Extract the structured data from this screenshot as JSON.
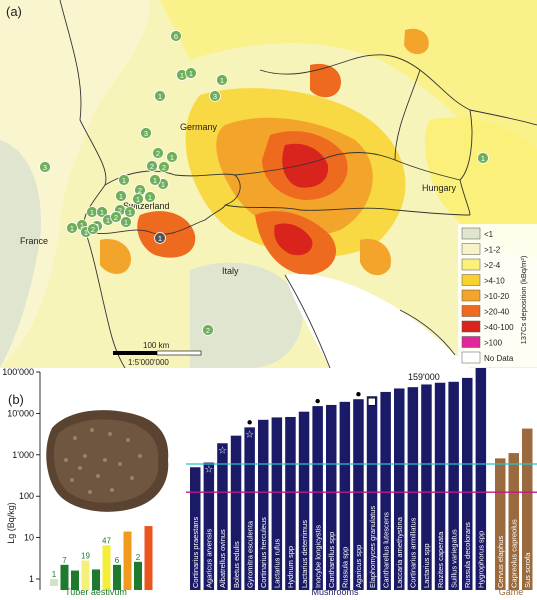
{
  "map": {
    "panel_label": "(a)",
    "places": [
      "Germany",
      "Switzerland",
      "France",
      "Italy",
      "Hungary"
    ],
    "scale_label": "100 km",
    "scale_ratio": "1:5'000'000",
    "legend": {
      "title": "137Cs deposition (kBq/m²)",
      "items": [
        {
          "label": "<1",
          "color": "#dfe5cf"
        },
        {
          "label": ">1-2",
          "color": "#f6f3c8"
        },
        {
          "label": ">2-4",
          "color": "#fbf07a"
        },
        {
          "label": ">4-10",
          "color": "#f8d22e"
        },
        {
          "label": ">10-20",
          "color": "#f2a52a"
        },
        {
          "label": ">20-40",
          "color": "#ee6a1f"
        },
        {
          "label": ">40-100",
          "color": "#d8241c"
        },
        {
          "label": ">100",
          "color": "#e0289a"
        },
        {
          "label": "No Data",
          "color": "#ffffff"
        }
      ]
    },
    "markers": [
      "6",
      "1",
      "1",
      "1",
      "3",
      "3",
      "1",
      "3",
      "2",
      "1",
      "2",
      "2",
      "1",
      "1",
      "2",
      "1",
      "1",
      "1",
      "1",
      "1",
      "2",
      "1",
      "1",
      "2",
      "1",
      "1",
      "2",
      "1",
      "2",
      "1",
      "1",
      "2",
      "1",
      "1"
    ]
  },
  "chart_data": {
    "type": "bar",
    "panel_label": "(b)",
    "ylabel": "Lg (Bq/kg)",
    "yscale": "log",
    "ylim": [
      1,
      100000
    ],
    "yticks": [
      "1",
      "10",
      "100",
      "1'000",
      "10'000",
      "100'000"
    ],
    "reference_lines": [
      {
        "value": 600,
        "color": "#27c2d2"
      },
      {
        "value": 125,
        "color": "#c0188a"
      }
    ],
    "groups": [
      {
        "name": "Tuber aestivum",
        "color": "#1e7a2c"
      },
      {
        "name": "Mushrooms",
        "color": "#1a1a66"
      },
      {
        "name": "Game",
        "color": "#9a6a3e"
      }
    ],
    "tuber_bars": [
      {
        "value": 0.8,
        "color": "#cfe3c7",
        "label": "1"
      },
      {
        "value": 2.2,
        "color": "#1e7a2c",
        "label": "7"
      },
      {
        "value": 1.6,
        "color": "#1e7a2c",
        "label": ""
      },
      {
        "value": 2.8,
        "color": "#f4f07a",
        "label": "19"
      },
      {
        "value": 1.7,
        "color": "#1e7a2c",
        "label": ""
      },
      {
        "value": 6.5,
        "color": "#f4ee3a",
        "label": "47"
      },
      {
        "value": 2.2,
        "color": "#1e7a2c",
        "label": "6"
      },
      {
        "value": 14,
        "color": "#f09a1e",
        "label": ""
      },
      {
        "value": 2.6,
        "color": "#1e7a2c",
        "label": "2"
      },
      {
        "value": 19,
        "color": "#e9551c",
        "label": ""
      }
    ],
    "mushrooms": [
      {
        "name": "Cortinarius praestans",
        "value": 500,
        "marker": ""
      },
      {
        "name": "Agaricus arvensis",
        "value": 650,
        "marker": "star"
      },
      {
        "name": "Albatrellus ovinus",
        "value": 1900,
        "marker": "star"
      },
      {
        "name": "Boletus edulis",
        "value": 2900,
        "marker": ""
      },
      {
        "name": "Gyromitra esculenta",
        "value": 4600,
        "marker": "star-dot"
      },
      {
        "name": "Cortinarius herculeus",
        "value": 7000,
        "marker": ""
      },
      {
        "name": "Lactarius rufus",
        "value": 8000,
        "marker": ""
      },
      {
        "name": "Hydnum spp",
        "value": 8200,
        "marker": ""
      },
      {
        "name": "Lactarius deterrimus",
        "value": 11000,
        "marker": ""
      },
      {
        "name": "Inocybe longicystis",
        "value": 15000,
        "marker": "dot"
      },
      {
        "name": "Cantharellus spp",
        "value": 16000,
        "marker": ""
      },
      {
        "name": "Russula spp",
        "value": 19000,
        "marker": ""
      },
      {
        "name": "Agaricus spp",
        "value": 22000,
        "marker": "dot"
      },
      {
        "name": "Elaphomyces granulatus",
        "value": 26000,
        "marker": "square"
      },
      {
        "name": "Cantharellus lutescens",
        "value": 33000,
        "marker": ""
      },
      {
        "name": "Laccaria amethystina",
        "value": 40000,
        "marker": ""
      },
      {
        "name": "Cortinarius armillatus",
        "value": 43000,
        "marker": ""
      },
      {
        "name": "Lactarius spp",
        "value": 50000,
        "marker": ""
      },
      {
        "name": "Rozites caperata",
        "value": 55000,
        "marker": ""
      },
      {
        "name": "Suillus variegatus",
        "value": 58000,
        "marker": ""
      },
      {
        "name": "Russula decolorans",
        "value": 72000,
        "marker": ""
      },
      {
        "name": "Hygrophorus spp",
        "value": 159000,
        "marker": ""
      }
    ],
    "top_value_label": "159'000",
    "game": [
      {
        "name": "Cervus elaphus",
        "value": 820
      },
      {
        "name": "Capreolus capreolus",
        "value": 1100
      },
      {
        "name": "Sus scrofa",
        "value": 4300
      }
    ]
  }
}
